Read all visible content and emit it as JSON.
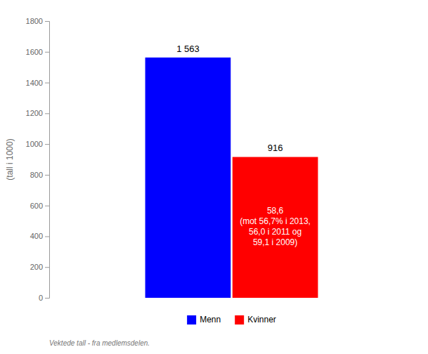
{
  "chart_data": {
    "type": "bar",
    "categories": [
      "Menn",
      "Kvinner"
    ],
    "values": [
      1563,
      916
    ],
    "value_labels": [
      "1 563",
      "916"
    ],
    "data_labels": true,
    "colors": [
      "#0000FF",
      "#FF0000"
    ],
    "ylabel": "(tall i 1000)",
    "ylim": [
      0,
      1800
    ],
    "yticks": [
      0,
      200,
      400,
      600,
      800,
      1000,
      1200,
      1400,
      1600,
      1800
    ],
    "grid": false,
    "legend": "bottom",
    "tick_labels": "y",
    "annotations": [
      {
        "text": "58,6\n(mot 56,7% i 2013,\n56,0 i 2011 og\n59,1 i 2009)",
        "category": "Kvinner"
      }
    ],
    "footnote": "Vektede tall - fra medlemsdelen."
  }
}
